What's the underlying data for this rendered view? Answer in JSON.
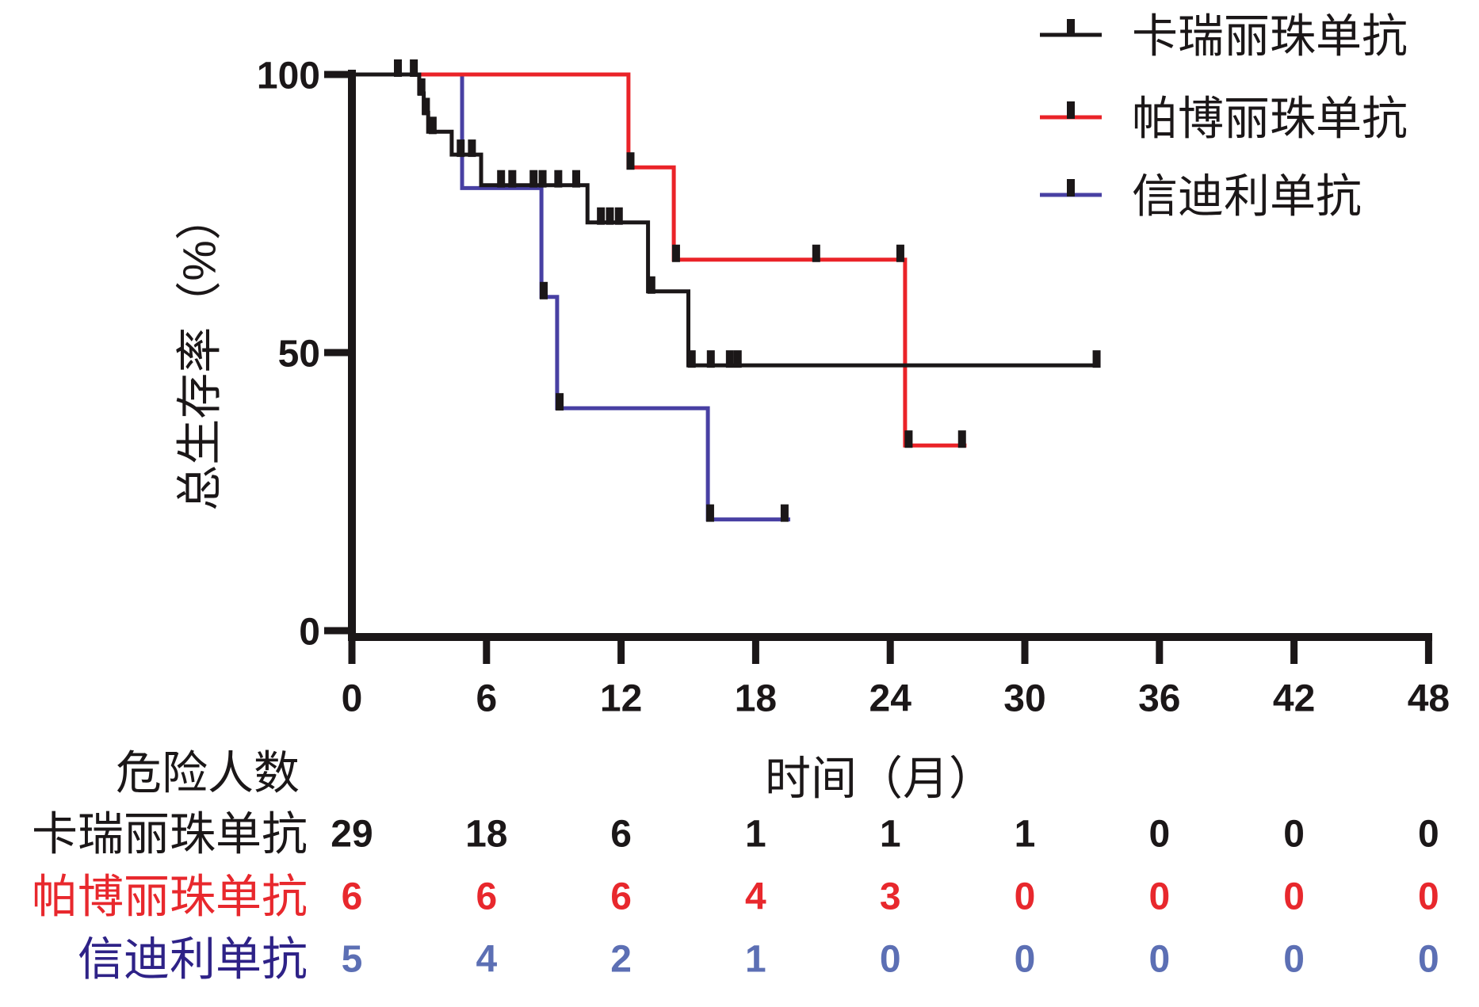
{
  "figure": {
    "background": "#ffffff",
    "curve_stroke_width": 5,
    "censor_tick_color": "#1b1718",
    "axis_color": "#1b1718"
  },
  "chart_data": {
    "type": "line",
    "subtype": "kaplan-meier-step-survival",
    "title": "",
    "xlabel": "时间（月）",
    "ylabel": "总生存率（%）",
    "xlim": [
      0,
      48
    ],
    "ylim": [
      0,
      100
    ],
    "x_ticks": [
      0,
      6,
      12,
      18,
      24,
      30,
      36,
      42,
      48
    ],
    "y_ticks": [
      100,
      50,
      0
    ],
    "grid": false,
    "legend_position": "top-right",
    "series": [
      {
        "name": "卡瑞丽珠单抗",
        "color": "#1b1718",
        "points": [
          [
            0,
            100
          ],
          [
            3.0,
            100
          ],
          [
            3.0,
            96.6
          ],
          [
            3.2,
            96.6
          ],
          [
            3.2,
            93.1
          ],
          [
            3.4,
            93.1
          ],
          [
            3.4,
            89.7
          ],
          [
            4.45,
            89.7
          ],
          [
            4.45,
            85.6
          ],
          [
            5.76,
            85.6
          ],
          [
            5.76,
            80.1
          ],
          [
            10.5,
            80.1
          ],
          [
            10.5,
            73.4
          ],
          [
            13.2,
            73.4
          ],
          [
            13.2,
            61.0
          ],
          [
            15.0,
            61.0
          ],
          [
            15.0,
            47.7
          ],
          [
            33.2,
            47.7
          ]
        ],
        "censors": [
          [
            2.05,
            100
          ],
          [
            2.76,
            100
          ],
          [
            3.1,
            96.6
          ],
          [
            3.3,
            93.1
          ],
          [
            3.6,
            89.7
          ],
          [
            4.85,
            85.6
          ],
          [
            5.35,
            85.6
          ],
          [
            6.65,
            80.1
          ],
          [
            7.15,
            80.1
          ],
          [
            8.1,
            80.1
          ],
          [
            8.5,
            80.1
          ],
          [
            9.2,
            80.1
          ],
          [
            10.0,
            80.1
          ],
          [
            11.1,
            73.4
          ],
          [
            11.5,
            73.4
          ],
          [
            11.9,
            73.4
          ],
          [
            13.35,
            61.0
          ],
          [
            15.15,
            47.7
          ],
          [
            16.0,
            47.7
          ],
          [
            16.85,
            47.7
          ],
          [
            17.2,
            47.7
          ],
          [
            33.2,
            47.7
          ]
        ]
      },
      {
        "name": "帕博丽珠单抗",
        "color": "#ea2328",
        "points": [
          [
            0,
            100
          ],
          [
            12.33,
            100
          ],
          [
            12.33,
            83.3
          ],
          [
            14.35,
            83.3
          ],
          [
            14.35,
            66.7
          ],
          [
            24.66,
            66.7
          ],
          [
            24.66,
            33.3
          ],
          [
            27.4,
            33.3
          ]
        ],
        "censors": [
          [
            12.42,
            83.3
          ],
          [
            14.45,
            66.7
          ],
          [
            20.7,
            66.7
          ],
          [
            24.45,
            66.7
          ],
          [
            24.82,
            33.3
          ],
          [
            27.2,
            33.3
          ]
        ]
      },
      {
        "name": "信迪利单抗",
        "color": "#4840a3",
        "points": [
          [
            0,
            100
          ],
          [
            4.91,
            100
          ],
          [
            4.91,
            80,
            3
          ],
          [
            8.45,
            80,
            3
          ],
          [
            8.45,
            60
          ],
          [
            9.15,
            60
          ],
          [
            9.15,
            40
          ],
          [
            15.87,
            40
          ],
          [
            15.87,
            20
          ],
          [
            19.54,
            20
          ]
        ],
        "censors": [
          [
            8.55,
            60
          ],
          [
            9.26,
            40
          ],
          [
            15.97,
            20
          ],
          [
            19.29,
            20
          ]
        ]
      }
    ],
    "number_at_risk": {
      "title": "危险人数",
      "times": [
        0,
        6,
        12,
        18,
        24,
        30,
        36,
        42,
        48
      ],
      "rows": [
        {
          "label": "卡瑞丽珠单抗",
          "label_color": "#1b1718",
          "value_color": "#1b1718",
          "values": [
            29,
            18,
            6,
            1,
            1,
            1,
            0,
            0,
            0
          ]
        },
        {
          "label": "帕博丽珠单抗",
          "label_color": "#e8282d",
          "value_color": "#e8282d",
          "values": [
            6,
            6,
            6,
            4,
            3,
            0,
            0,
            0,
            0
          ]
        },
        {
          "label": "信迪利单抗",
          "label_color": "#2e2287",
          "value_color": "#5c6fb4",
          "values": [
            5,
            4,
            2,
            1,
            0,
            0,
            0,
            0,
            0
          ]
        }
      ]
    }
  }
}
